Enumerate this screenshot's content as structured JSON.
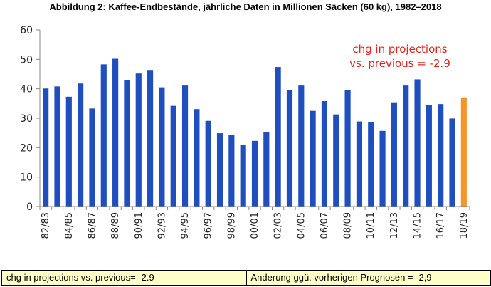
{
  "header": {
    "title": "Abbildung 2: Kaffee-Endbestände, jährliche Daten in Millionen Säcken (60 kg), 1982–2018"
  },
  "annotation": {
    "line1": "chg in projections",
    "line2": "vs. previous = -2.9",
    "color": "#e8221c"
  },
  "footer": {
    "left": "chg in projections vs. previous= -2.9",
    "right": "Änderung ggü. vorherigen Prognosen = -2,9"
  },
  "chart_data": {
    "type": "bar",
    "title": "Abbildung 2: Kaffee-Endbestände, jährliche Daten in Millionen Säcken (60 kg), 1982–2018",
    "xlabel": "",
    "ylabel": "",
    "ylim": [
      0,
      60
    ],
    "yticks": [
      0,
      10,
      20,
      30,
      40,
      50,
      60
    ],
    "grid": false,
    "categories": [
      "82/83",
      "83/84",
      "84/85",
      "85/86",
      "86/87",
      "87/88",
      "88/89",
      "89/90",
      "90/91",
      "91/92",
      "92/93",
      "93/94",
      "94/95",
      "95/96",
      "96/97",
      "97/98",
      "98/99",
      "99/00",
      "00/01",
      "01/02",
      "02/03",
      "03/04",
      "04/05",
      "05/06",
      "06/07",
      "07/08",
      "08/09",
      "09/10",
      "10/11",
      "11/12",
      "12/13",
      "13/14",
      "14/15",
      "15/16",
      "16/17",
      "17/18",
      "18/19"
    ],
    "tick_labels_shown": [
      "82/83",
      "84/85",
      "86/87",
      "88/89",
      "90/91",
      "92/93",
      "94/95",
      "96/97",
      "98/99",
      "00/01",
      "02/03",
      "04/05",
      "06/07",
      "08/09",
      "10/11",
      "12/13",
      "14/15",
      "16/17",
      "18/19"
    ],
    "values": [
      40.1,
      40.8,
      37.3,
      41.8,
      33.3,
      48.3,
      50.2,
      43.0,
      45.2,
      46.4,
      40.5,
      34.2,
      41.1,
      33.1,
      29.1,
      24.9,
      24.3,
      20.8,
      22.3,
      25.2,
      47.4,
      39.5,
      41.1,
      32.5,
      35.8,
      31.3,
      39.6,
      28.9,
      28.7,
      25.7,
      35.4,
      41.1,
      43.2,
      34.4,
      34.8,
      29.9,
      37.1
    ],
    "colors": {
      "history": "#1f4fbf",
      "projection": "#f5952b"
    },
    "highlight_index": 36
  }
}
